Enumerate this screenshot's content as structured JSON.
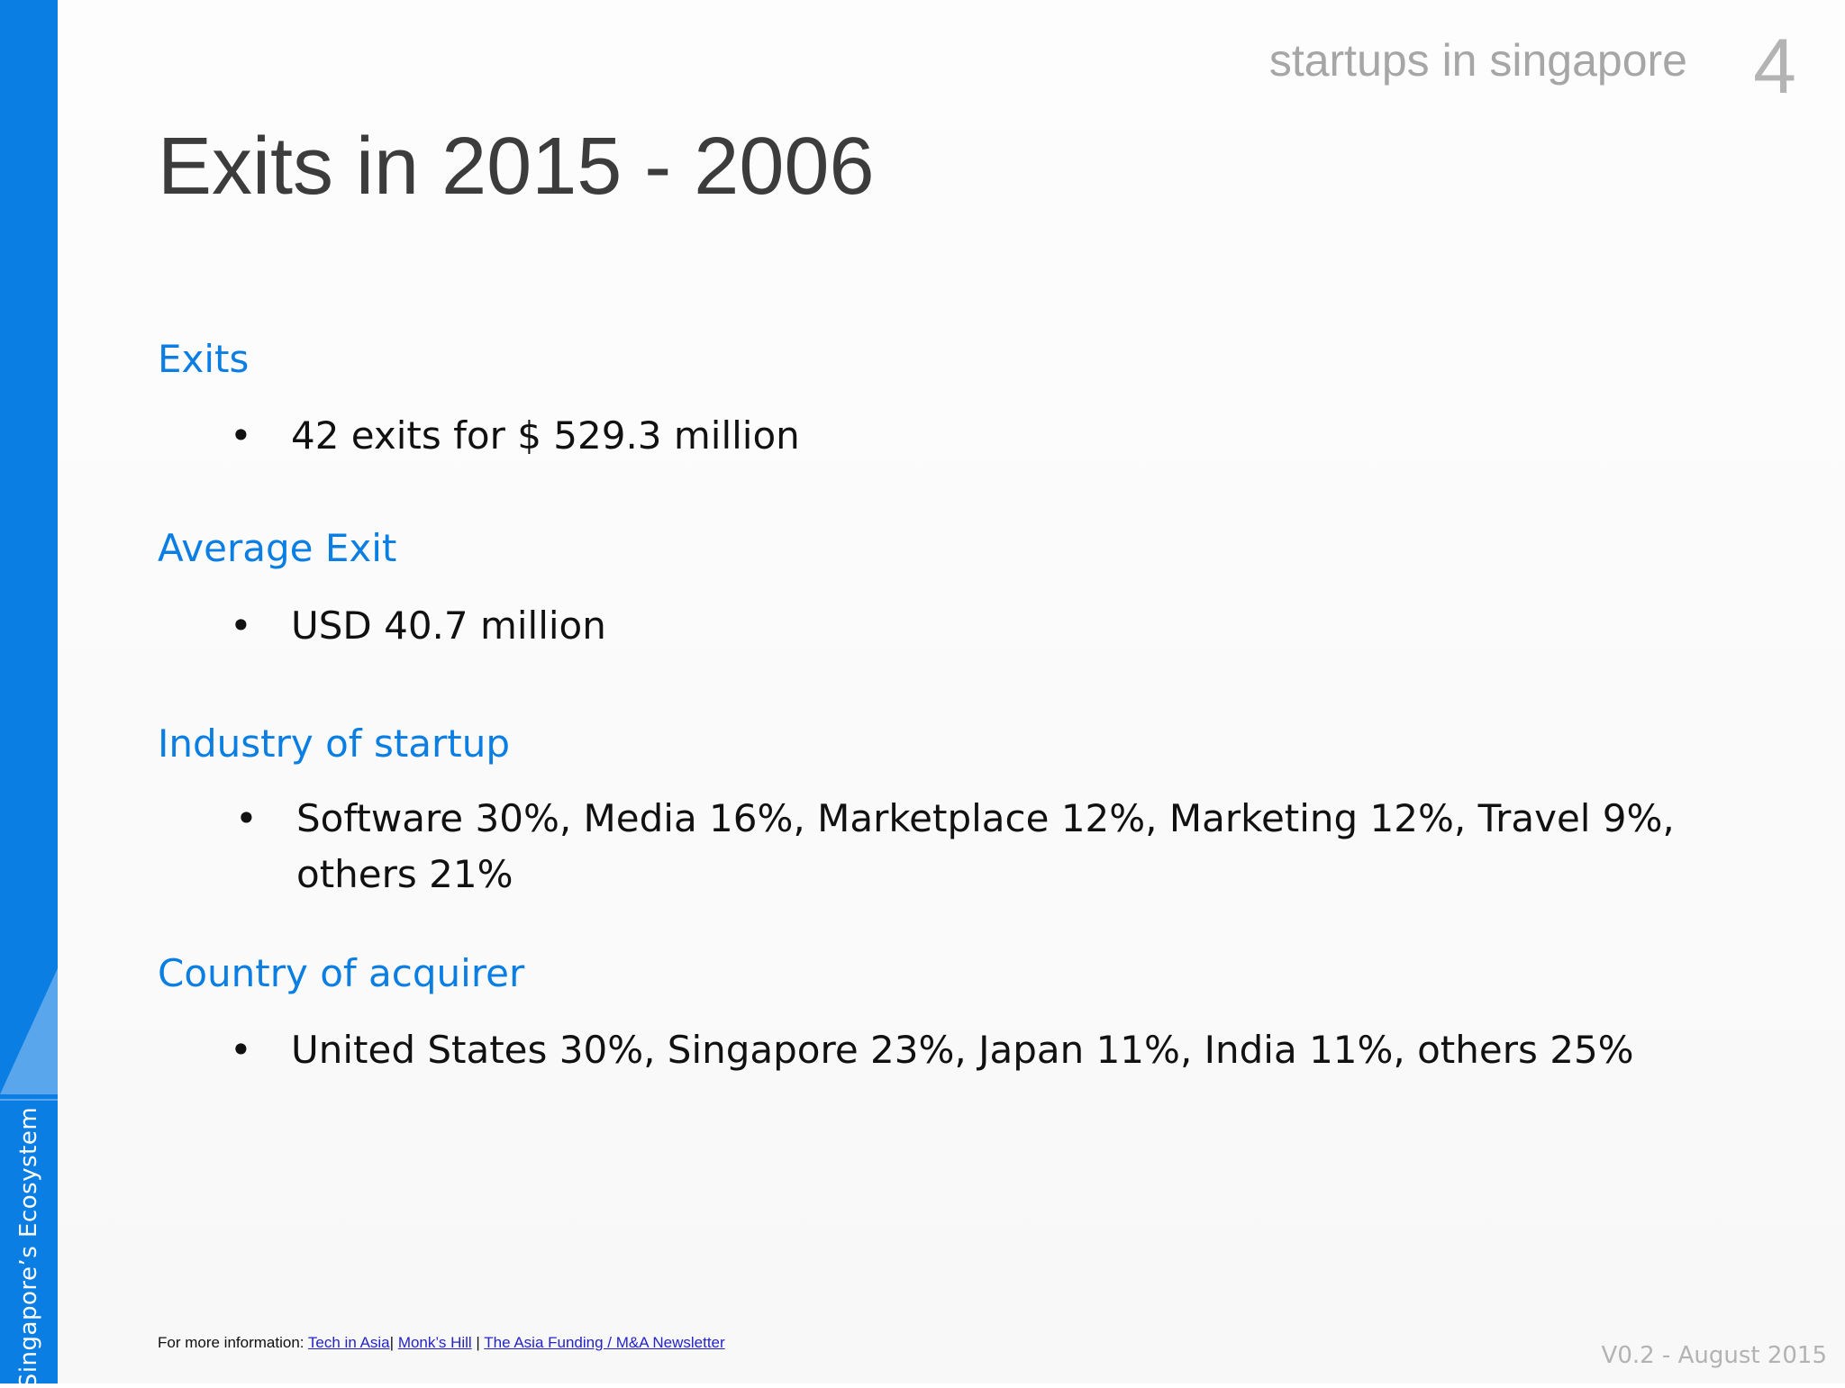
{
  "header": {
    "topic": "startups in singapore",
    "page_number": "4"
  },
  "title": "Exits in 2015 - 2006",
  "sections": [
    {
      "heading": "Exits",
      "bullets": [
        "42 exits for $ 529.3 million"
      ]
    },
    {
      "heading": "Average Exit",
      "bullets": [
        "USD 40.7 million"
      ]
    },
    {
      "heading": "Industry of startup",
      "bullets": [
        "Software 30%, Media 16%, Marketplace 12%, Marketing 12%, Travel 9%, others 21%"
      ]
    },
    {
      "heading": "Country of acquirer",
      "bullets": [
        "United States 30%, Singapore 23%, Japan 11%, India 11%, others 25%"
      ]
    }
  ],
  "sidebar": {
    "label": "Singapore’s Ecosystem"
  },
  "footer": {
    "prefix": "For more information:",
    "links": [
      "Tech in Asia",
      "Monk’s Hill",
      "The Asia Funding / M&A Newsletter"
    ],
    "separator": "|",
    "version": "V0.2 - August 2015"
  },
  "colors": {
    "accent": "#0a7ee3",
    "accent_light": "#5aa6ec",
    "title": "#3c3c3c",
    "muted": "#a6a6a6"
  }
}
